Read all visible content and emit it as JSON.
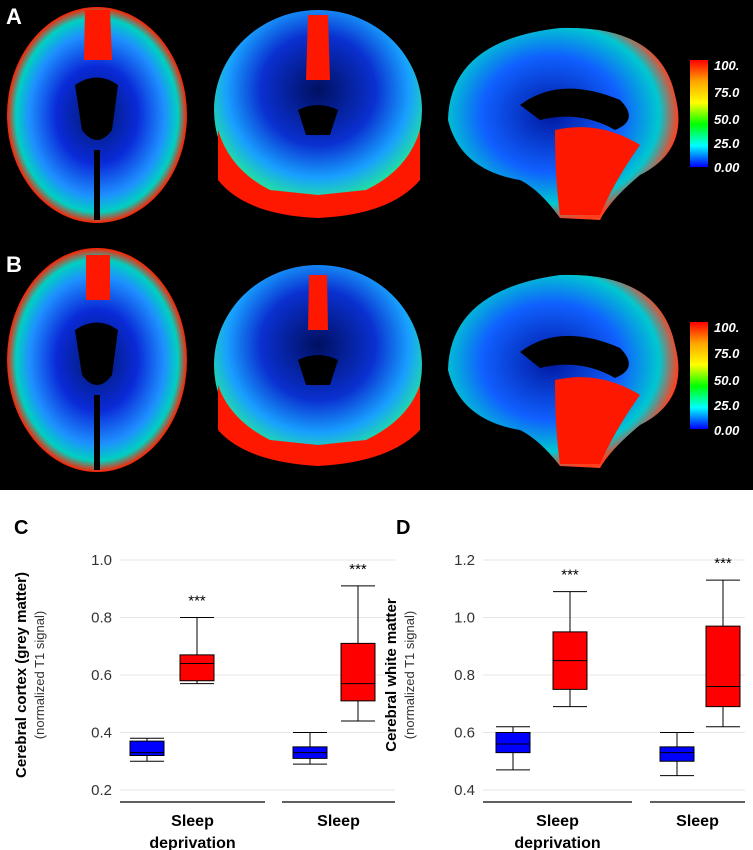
{
  "panels": {
    "A": "A",
    "B": "B",
    "C": "C",
    "D": "D"
  },
  "colorbar": {
    "labels": [
      "100.",
      "75.0",
      "50.0",
      "25.0",
      "0.00"
    ],
    "colors": [
      "#ff0000",
      "#ffa500",
      "#ffff00",
      "#00ff00",
      "#00ffff",
      "#0000ff"
    ]
  },
  "chart_data": [
    {
      "type": "box",
      "ylabel": "Cerebral cortex (grey matter)",
      "ysublabel": "(normalized T1 signal)",
      "ylim": [
        0.2,
        1.0
      ],
      "yticks": [
        "0.2",
        "0.4",
        "0.6",
        "0.8",
        "1.0"
      ],
      "groups": [
        {
          "label": [
            "Sleep",
            "deprivation"
          ],
          "significance": "***",
          "boxes": [
            {
              "color": "#0000ff",
              "min": 0.3,
              "q1": 0.32,
              "median": 0.33,
              "q3": 0.37,
              "max": 0.38
            },
            {
              "color": "#ff0000",
              "min": 0.57,
              "q1": 0.58,
              "median": 0.64,
              "q3": 0.67,
              "max": 0.8
            }
          ]
        },
        {
          "label": [
            "Sleep"
          ],
          "significance": "***",
          "boxes": [
            {
              "color": "#0000ff",
              "min": 0.29,
              "q1": 0.31,
              "median": 0.33,
              "q3": 0.35,
              "max": 0.4
            },
            {
              "color": "#ff0000",
              "min": 0.44,
              "q1": 0.51,
              "median": 0.57,
              "q3": 0.71,
              "max": 0.91
            }
          ]
        }
      ]
    },
    {
      "type": "box",
      "ylabel": "Cerebral white matter",
      "ysublabel": "(normalized T1 signal)",
      "ylim": [
        0.4,
        1.2
      ],
      "yticks": [
        "0.4",
        "0.6",
        "0.8",
        "1.0",
        "1.2"
      ],
      "groups": [
        {
          "label": [
            "Sleep",
            "deprivation"
          ],
          "significance": "***",
          "boxes": [
            {
              "color": "#0000ff",
              "min": 0.47,
              "q1": 0.53,
              "median": 0.56,
              "q3": 0.6,
              "max": 0.62
            },
            {
              "color": "#ff0000",
              "min": 0.69,
              "q1": 0.75,
              "median": 0.85,
              "q3": 0.95,
              "max": 1.09
            }
          ]
        },
        {
          "label": [
            "Sleep"
          ],
          "significance": "***",
          "boxes": [
            {
              "color": "#0000ff",
              "min": 0.45,
              "q1": 0.5,
              "median": 0.53,
              "q3": 0.55,
              "max": 0.6
            },
            {
              "color": "#ff0000",
              "min": 0.62,
              "q1": 0.69,
              "median": 0.76,
              "q3": 0.97,
              "max": 1.13
            }
          ]
        }
      ]
    }
  ]
}
